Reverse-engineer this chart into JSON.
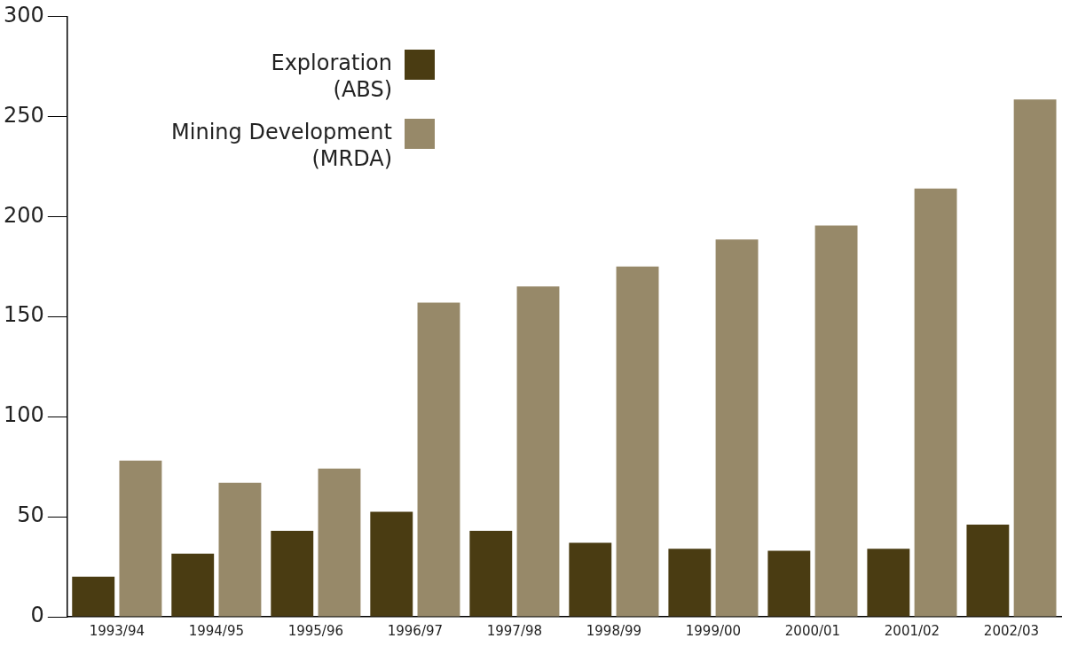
{
  "chart_data": {
    "type": "bar",
    "categories": [
      "1993/94",
      "1994/95",
      "1995/96",
      "1996/97",
      "1997/98",
      "1998/99",
      "1999/00",
      "2000/01",
      "2001/02",
      "2002/03"
    ],
    "series": [
      {
        "name": "Exploration\n(ABS)",
        "color": "#4a3c12",
        "values": [
          20,
          31.5,
          43,
          52.5,
          43,
          37,
          34,
          33,
          34,
          46
        ]
      },
      {
        "name": "Mining Development\n(MRDA)",
        "color": "#978969",
        "values": [
          78,
          67,
          74,
          157,
          165,
          175,
          188.5,
          195.5,
          214,
          258.5
        ]
      }
    ],
    "ylim": [
      0,
      300
    ],
    "yticks": [
      0,
      50,
      100,
      150,
      200,
      250,
      300
    ],
    "grid": false,
    "legend": "top left"
  }
}
